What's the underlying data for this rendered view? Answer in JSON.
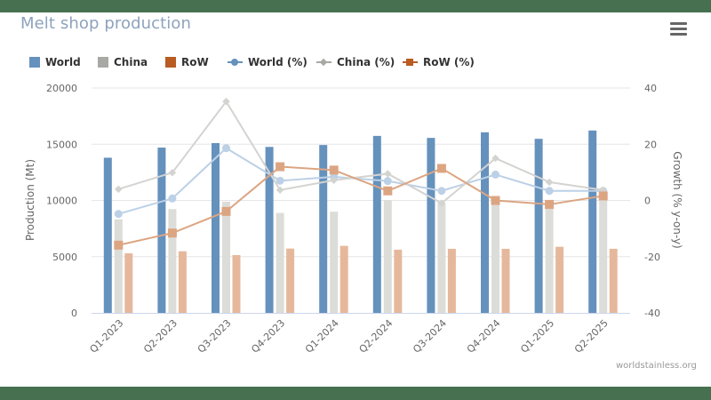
{
  "frame": {
    "band_color": "#467050"
  },
  "header": {
    "title": "Melt shop production",
    "menu_icon": "hamburger-menu-icon"
  },
  "legend": {
    "items": [
      {
        "label": "World",
        "type": "bar",
        "color": "#6591bd"
      },
      {
        "label": "China",
        "type": "bar",
        "color": "#a8a8a4"
      },
      {
        "label": "RoW",
        "type": "bar",
        "color": "#b85c22"
      },
      {
        "label": "World (%)",
        "type": "line",
        "marker": "circle",
        "color": "#6591bd"
      },
      {
        "label": "China (%)",
        "type": "line",
        "marker": "diamond",
        "color": "#a8a8a4"
      },
      {
        "label": "RoW (%)",
        "type": "line",
        "marker": "square",
        "color": "#b85c22"
      }
    ]
  },
  "credit": "worldstainless.org",
  "chart_data": {
    "type": "bar",
    "title": "Melt shop production",
    "categories": [
      "Q1-2023",
      "Q2-2023",
      "Q3-2023",
      "Q4-2023",
      "Q1-2024",
      "Q2-2024",
      "Q3-2024",
      "Q4-2024",
      "Q1-2025",
      "Q2-2025"
    ],
    "xlabel": "",
    "ylabel": "Production (Mt)",
    "ylim": [
      0,
      20000
    ],
    "yticks": [
      0,
      5000,
      10000,
      15000,
      20000
    ],
    "y2label": "Growth (% y-on-y)",
    "y2lim": [
      -40,
      40
    ],
    "y2ticks": [
      -40,
      -20,
      0,
      20,
      40
    ],
    "grid": true,
    "legend_position": "top-left",
    "series": [
      {
        "name": "World",
        "type": "bar",
        "axis": "left",
        "color": "#6591bd",
        "values": [
          13800,
          14700,
          15100,
          14760,
          14930,
          15740,
          15560,
          16060,
          15480,
          16220
        ]
      },
      {
        "name": "China",
        "type": "bar",
        "axis": "left",
        "color": "#dcdcd8",
        "values": [
          8330,
          9230,
          9890,
          8890,
          9000,
          10040,
          9780,
          10040,
          9680,
          10440
        ]
      },
      {
        "name": "RoW",
        "type": "bar",
        "axis": "left",
        "color": "#e5b89c",
        "values": [
          5300,
          5480,
          5140,
          5720,
          5960,
          5620,
          5700,
          5700,
          5880,
          5700
        ]
      },
      {
        "name": "World (%)",
        "type": "line",
        "axis": "right",
        "marker": "circle",
        "color": "#bcd0e6",
        "values": [
          -4.8,
          0.7,
          18.6,
          7.0,
          8.4,
          6.9,
          3.4,
          9.2,
          3.4,
          3.4
        ]
      },
      {
        "name": "China (%)",
        "type": "line",
        "axis": "right",
        "marker": "diamond",
        "color": "#d3d3d0",
        "values": [
          4.0,
          9.9,
          35.2,
          3.7,
          7.2,
          9.5,
          -1.0,
          15.0,
          6.5,
          3.7
        ]
      },
      {
        "name": "RoW (%)",
        "type": "line",
        "axis": "right",
        "marker": "square",
        "color": "#dca582",
        "values": [
          -15.9,
          -11.6,
          -3.9,
          12.0,
          10.8,
          3.4,
          11.4,
          0.0,
          -1.4,
          1.6
        ]
      }
    ]
  }
}
